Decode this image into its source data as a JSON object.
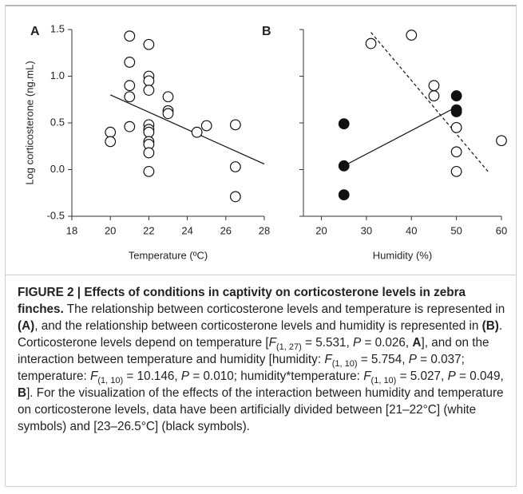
{
  "chart_data": [
    {
      "type": "scatter",
      "panel_label": "A",
      "xlabel": "Temperature (ºC)",
      "ylabel": "Log corticosterone (ng.mL)",
      "xlim": [
        18,
        28
      ],
      "xticks": [
        18,
        20,
        22,
        24,
        26,
        28
      ],
      "ylim": [
        -0.5,
        1.5
      ],
      "yticks": [
        -0.5,
        {
          "value": 0,
          "label": "0.0"
        },
        0.5,
        {
          "value": 1,
          "label": "1.0"
        },
        1.5
      ],
      "ytick_labels": true,
      "series": [
        {
          "marker": "open",
          "x": [
            20,
            20,
            21,
            21,
            21,
            21,
            21,
            22,
            22,
            22,
            22,
            22,
            22,
            22,
            22,
            22,
            22,
            22,
            23,
            23,
            23,
            24.5,
            25,
            26.5,
            26.5,
            26.5
          ],
          "y": [
            0.4,
            0.3,
            1.43,
            1.15,
            0.9,
            0.78,
            0.46,
            1.34,
            1.0,
            0.95,
            0.85,
            0.48,
            0.43,
            0.4,
            0.3,
            0.27,
            0.18,
            -0.02,
            0.78,
            0.63,
            0.6,
            0.4,
            0.47,
            0.48,
            0.03,
            -0.29
          ]
        }
      ],
      "lines": [
        {
          "dash": false,
          "x": [
            20,
            28
          ],
          "y": [
            0.8,
            0.06
          ]
        }
      ]
    },
    {
      "type": "scatter",
      "panel_label": "B",
      "xlabel": "Humidity (%)",
      "xlim": [
        16,
        60
      ],
      "xticks": [
        20,
        30,
        40,
        50,
        60
      ],
      "ylim": [
        -0.5,
        1.5
      ],
      "yticks": [
        -0.5,
        0,
        0.5,
        1,
        1.5
      ],
      "ytick_labels": false,
      "series": [
        {
          "marker": "open",
          "x": [
            31,
            40,
            45,
            45,
            50,
            50,
            50,
            60
          ],
          "y": [
            1.35,
            1.44,
            0.9,
            0.79,
            0.45,
            0.19,
            -0.02,
            0.31
          ]
        },
        {
          "marker": "filled",
          "x": [
            25,
            25,
            25,
            50,
            50,
            50
          ],
          "y": [
            0.49,
            0.04,
            -0.27,
            0.79,
            0.64,
            0.62
          ]
        }
      ],
      "lines": [
        {
          "dash": false,
          "x": [
            25,
            50
          ],
          "y": [
            0.04,
            0.67
          ]
        },
        {
          "dash": true,
          "x": [
            31,
            57
          ],
          "y": [
            1.47,
            -0.02
          ]
        }
      ]
    }
  ],
  "caption": {
    "title": "FIGURE 2 | Effects of conditions in captivity on corticosterone levels in zebra finches.",
    "runs": [
      " The relationship between corticosterone levels and temperature is represented in ",
      "(A)",
      ", and the relationship between corticosterone levels and humidity is represented in ",
      "(B)",
      ". Corticosterone levels depend on temperature [",
      "F",
      "(1, 27)",
      " = 5.531, ",
      "P",
      " = 0.026, ",
      "A",
      "], and on the interaction between temperature and humidity [humidity: ",
      "F",
      "(1, 10)",
      " = 5.754, ",
      "P",
      " = 0.037; temperature: ",
      "F",
      "(1, 10)",
      " = 10.146, ",
      "P",
      " = 0.010; humidity*temperature: ",
      "F",
      "(1, 10)",
      " = 5.027, ",
      "P",
      " = 0.049, ",
      "B",
      "]. For the visualization of the effects of the interaction between humidity and temperature on corticosterone levels, data have been artificially divided between [21–22°C] (white symbols) and [23–26.5°C] (black symbols)."
    ]
  }
}
